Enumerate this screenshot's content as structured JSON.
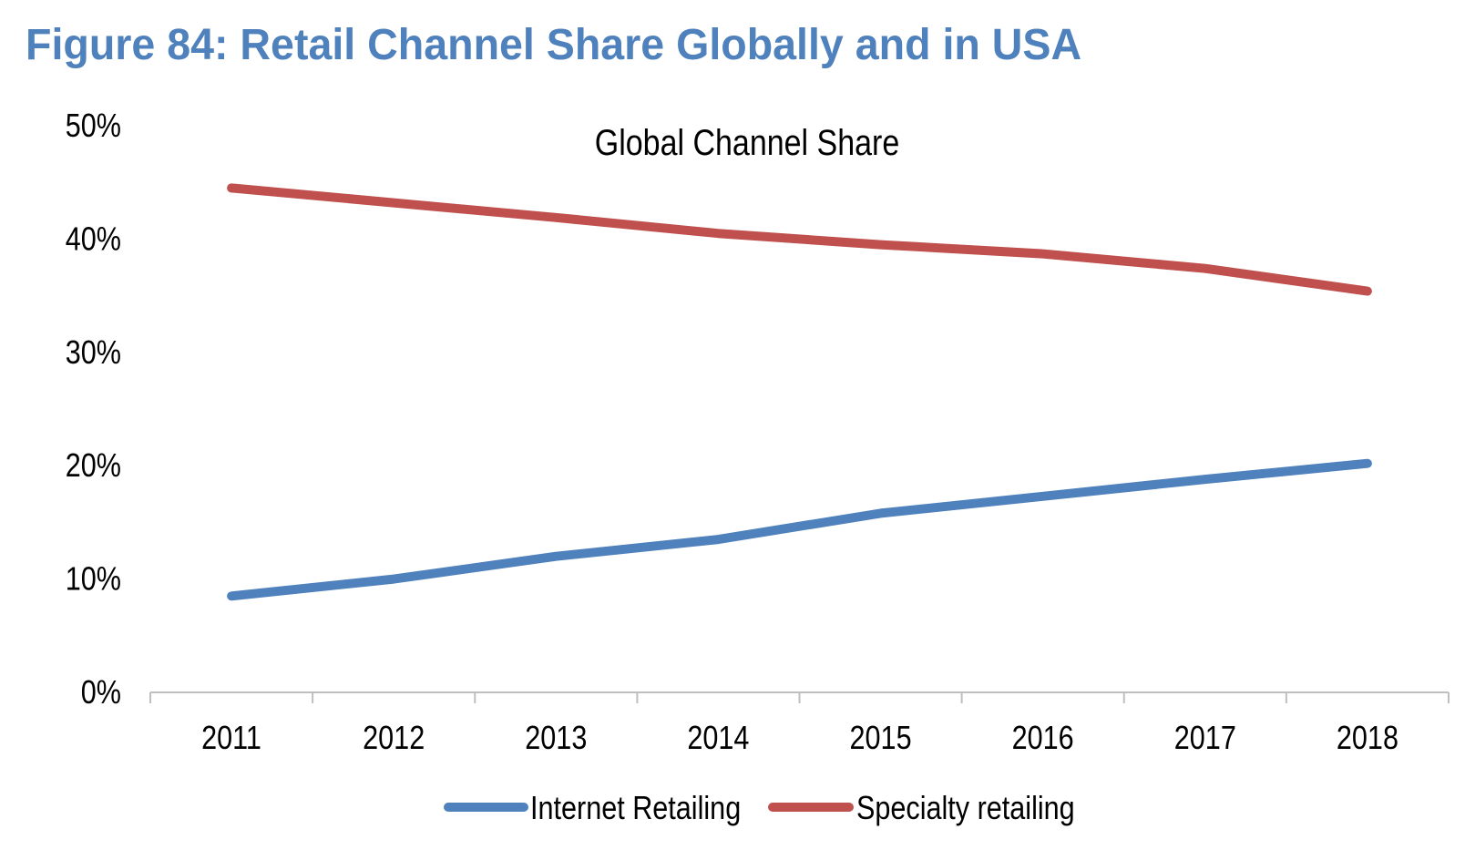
{
  "figure": {
    "title": "Figure 84: Retail Channel Share Globally and in USA",
    "title_color": "#4f81bd"
  },
  "chart_data": {
    "type": "line",
    "title": "Global Channel Share",
    "xlabel": "",
    "ylabel": "",
    "categories": [
      "2011",
      "2012",
      "2013",
      "2014",
      "2015",
      "2016",
      "2017",
      "2018"
    ],
    "y_ticks": [
      "0%",
      "10%",
      "20%",
      "30%",
      "40%",
      "50%"
    ],
    "ylim": [
      0,
      50
    ],
    "y_unit": "%",
    "grid": false,
    "legend_position": "bottom",
    "series": [
      {
        "name": "Internet Retailing",
        "color": "#4f81bd",
        "values": [
          8.5,
          10.0,
          12.0,
          13.5,
          15.8,
          17.3,
          18.8,
          20.2
        ]
      },
      {
        "name": "Specialty retailing",
        "color": "#c0504d",
        "values": [
          44.5,
          43.2,
          41.9,
          40.5,
          39.5,
          38.7,
          37.4,
          35.4
        ]
      }
    ]
  }
}
